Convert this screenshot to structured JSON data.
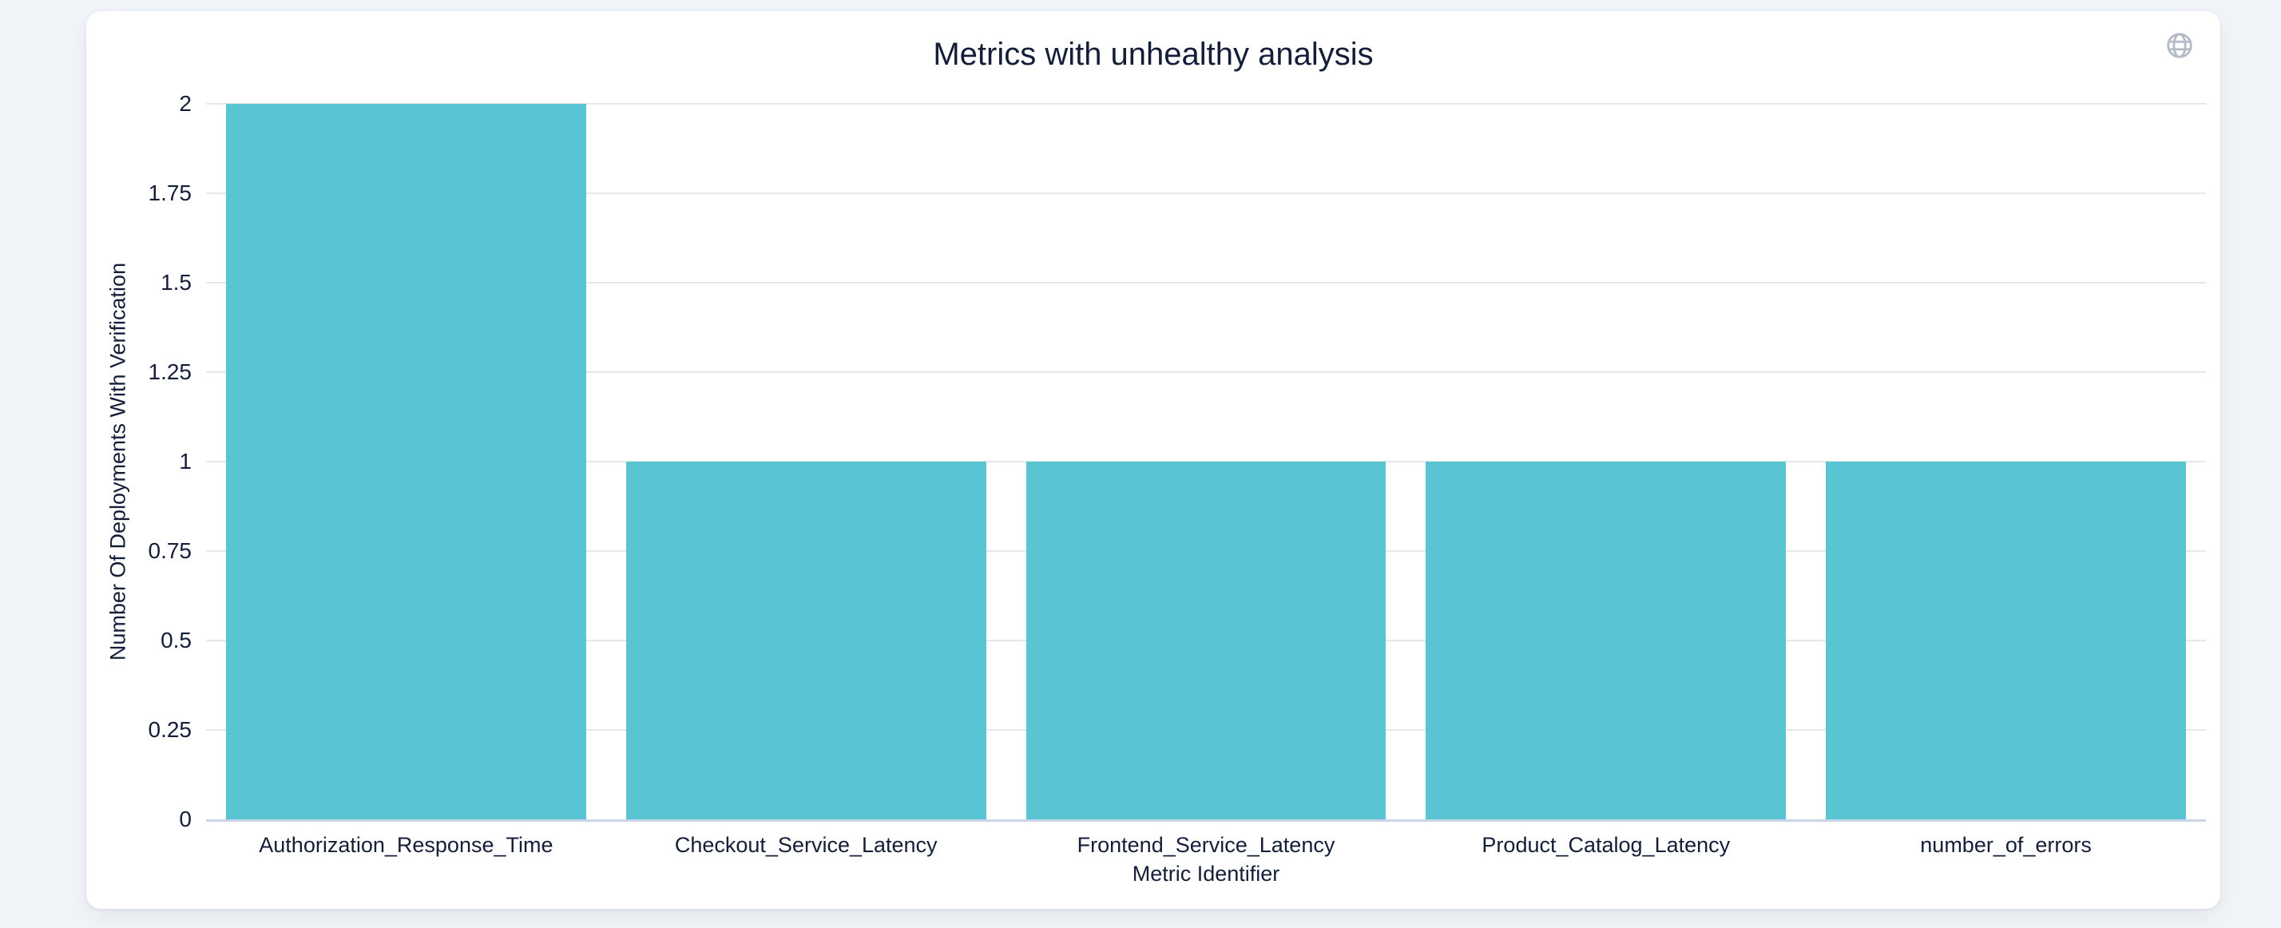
{
  "page": {
    "background_color": "#f1f4f8"
  },
  "card": {
    "background_color": "#ffffff"
  },
  "icons": {
    "globe": {
      "name": "globe-icon",
      "color": "#b4bbc7"
    }
  },
  "chart_data": {
    "type": "bar",
    "title": "Metrics with unhealthy analysis",
    "categories": [
      "Authorization_Response_Time",
      "Checkout_Service_Latency",
      "Frontend_Service_Latency",
      "Product_Catalog_Latency",
      "number_of_errors"
    ],
    "values": [
      2,
      1,
      1,
      1,
      1
    ],
    "xlabel": "Metric Identifier",
    "ylabel": "Number Of Deployments With Verification",
    "ylim": [
      0,
      2
    ],
    "yticks": [
      "0",
      "0.25",
      "0.5",
      "0.75",
      "1",
      "1.25",
      "1.5",
      "1.75",
      "2"
    ],
    "bar_color": "#5ac5d2",
    "bar_gap_fraction": 0.1,
    "grid": true,
    "gridline_color": "#e8e8e8",
    "axis_line_color": "#ccd4e8",
    "text_color": "#141e38",
    "legend": "none"
  }
}
